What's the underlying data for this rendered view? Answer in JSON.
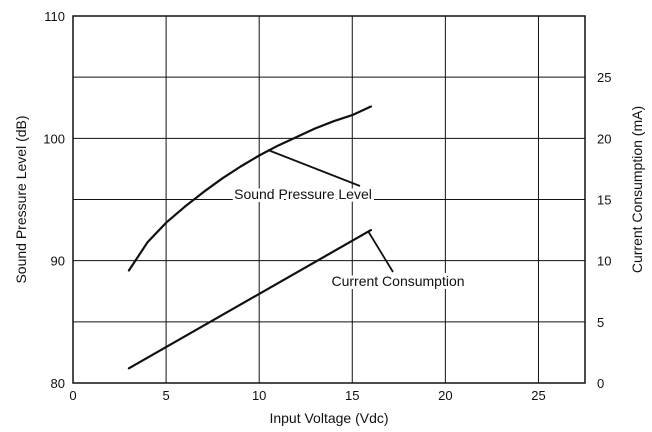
{
  "chart_data": {
    "type": "line",
    "xlabel": "Input Voltage (Vdc)",
    "ylabel": "Sound Pressure Level (dB)",
    "y2label": "Current Consumption (mA)",
    "xlim": [
      0,
      27.5
    ],
    "ylim": [
      80,
      110
    ],
    "y2lim": [
      0,
      30
    ],
    "x_ticks": [
      0,
      5,
      10,
      15,
      20,
      25
    ],
    "y_ticks": [
      80,
      90,
      100,
      110
    ],
    "y2_ticks": [
      0,
      5,
      10,
      15,
      20,
      25
    ],
    "grid": true,
    "series": [
      {
        "name": "Sound Pressure Level",
        "axis": "left",
        "x": [
          3,
          4,
          5,
          6,
          7,
          8,
          9,
          10,
          11,
          12,
          13,
          14,
          15,
          16
        ],
        "y": [
          89.2,
          91.5,
          93.1,
          94.4,
          95.6,
          96.7,
          97.7,
          98.6,
          99.4,
          100.1,
          100.8,
          101.4,
          101.9,
          102.6
        ]
      },
      {
        "name": "Current Consumption",
        "axis": "right",
        "x": [
          3,
          16
        ],
        "y": [
          1.2,
          12.5
        ]
      }
    ],
    "annotations": [
      {
        "text": "Sound Pressure Level",
        "series": 0
      },
      {
        "text": "Current Consumption",
        "series": 1
      }
    ]
  }
}
